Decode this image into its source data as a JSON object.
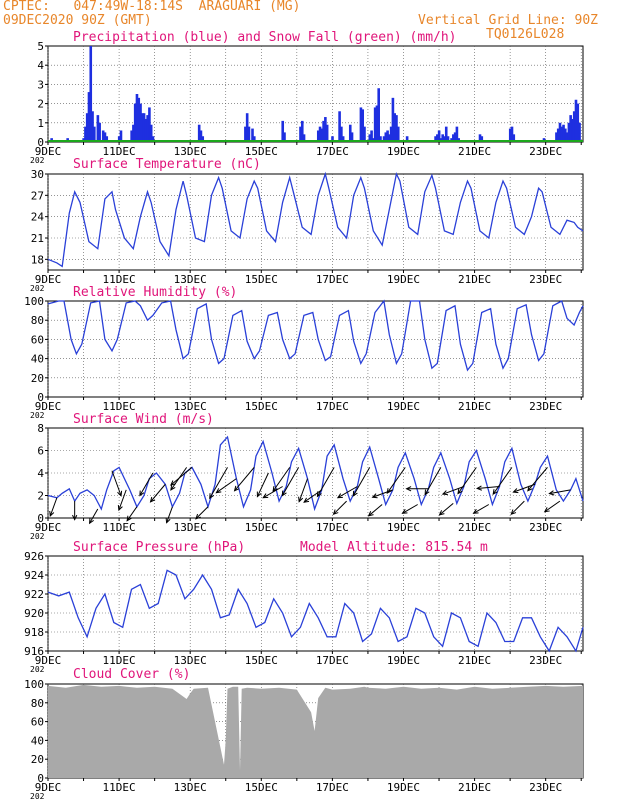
{
  "header": {
    "line1": "CPTEC:   047:49W-18:14S  ARAGUARI (MG)",
    "line2": "09DEC2020 90Z (GMT)",
    "grid_note": "Vertical Grid Line: 90Z",
    "code": "TQ0126L028"
  },
  "colors": {
    "header": "#e8862a",
    "title": "#e0157a",
    "line": "#2a40d8",
    "precip": "#1e2fe0",
    "snow": "#1ca81c",
    "cloud": "#a9a9a9"
  },
  "x_axis": {
    "labels": [
      "9DEC",
      "11DEC",
      "13DEC",
      "15DEC",
      "17DEC",
      "19DEC",
      "21DEC",
      "23DEC"
    ],
    "label_days": [
      9,
      11,
      13,
      15,
      17,
      19,
      21,
      23
    ],
    "year_stub": "202",
    "start_day": 9,
    "end_day": 24.05
  },
  "chart_data": [
    {
      "type": "bar",
      "title": "Precipitation (blue) and Snow Fall (green) (mm/h)",
      "ylim": [
        0,
        5
      ],
      "yticks": [
        0,
        1,
        2,
        3,
        4,
        5
      ],
      "series": [
        {
          "name": "Precipitation",
          "x": [
            9.05,
            9.1,
            9.15,
            9.2,
            9.55,
            9.6,
            10.0,
            10.05,
            10.1,
            10.15,
            10.2,
            10.25,
            10.3,
            10.4,
            10.45,
            10.55,
            10.6,
            10.65,
            10.95,
            11.0,
            11.05,
            11.35,
            11.4,
            11.45,
            11.5,
            11.55,
            11.6,
            11.65,
            11.7,
            11.75,
            11.8,
            11.85,
            11.9,
            11.95,
            13.25,
            13.3,
            13.35,
            14.55,
            14.6,
            14.65,
            14.75,
            14.8,
            15.6,
            15.65,
            16.1,
            16.15,
            16.2,
            16.6,
            16.65,
            16.7,
            16.75,
            16.8,
            16.85,
            17.0,
            17.2,
            17.25,
            17.3,
            17.5,
            17.55,
            17.8,
            17.85,
            17.9,
            18.05,
            18.1,
            18.15,
            18.2,
            18.25,
            18.3,
            18.35,
            18.4,
            18.45,
            18.5,
            18.55,
            18.6,
            18.65,
            18.7,
            18.75,
            18.8,
            18.85,
            19.1,
            19.15,
            19.9,
            19.95,
            20.0,
            20.05,
            20.1,
            20.15,
            20.2,
            20.25,
            20.3,
            20.35,
            20.4,
            20.45,
            20.5,
            20.55,
            21.15,
            21.2,
            22.0,
            22.05,
            22.1,
            22.95,
            23.0,
            23.3,
            23.35,
            23.4,
            23.45,
            23.5,
            23.55,
            23.6,
            23.65,
            23.7,
            23.75,
            23.8,
            23.85,
            23.9,
            23.95
          ],
          "values": [
            0.1,
            0.2,
            0.1,
            0.1,
            0.2,
            0.1,
            0.2,
            0.8,
            1.5,
            2.6,
            5.0,
            1.6,
            0.8,
            1.4,
            1.0,
            0.6,
            0.5,
            0.3,
            0.1,
            0.3,
            0.6,
            0.6,
            0.9,
            2.0,
            2.5,
            2.3,
            2.0,
            1.5,
            1.5,
            1.2,
            1.4,
            1.8,
            0.9,
            0.3,
            0.9,
            0.6,
            0.3,
            0.8,
            1.5,
            0.8,
            0.7,
            0.3,
            1.1,
            0.5,
            0.8,
            1.1,
            0.4,
            0.6,
            0.8,
            0.7,
            1.1,
            1.3,
            0.9,
            0.3,
            1.6,
            0.8,
            0.3,
            0.9,
            0.5,
            1.8,
            1.7,
            0.8,
            0.4,
            0.6,
            0.2,
            1.8,
            1.9,
            2.8,
            0.3,
            0.1,
            0.3,
            0.5,
            0.6,
            0.4,
            0.8,
            2.3,
            1.5,
            1.4,
            0.8,
            0.3,
            0.1,
            0.3,
            0.4,
            0.6,
            0.2,
            0.4,
            0.3,
            0.8,
            0.3,
            0.1,
            0.2,
            0.4,
            0.5,
            0.8,
            0.2,
            0.4,
            0.3,
            0.7,
            0.8,
            0.4,
            0.2,
            0.1,
            0.5,
            0.7,
            1.0,
            0.8,
            0.9,
            0.7,
            0.5,
            1.0,
            1.4,
            1.2,
            1.6,
            2.2,
            2.0,
            1.0
          ]
        },
        {
          "name": "Snow Fall",
          "x": [
            9.0
          ],
          "values": [
            0
          ]
        }
      ]
    },
    {
      "type": "line",
      "title": "Surface Temperature (nC)",
      "ylim": [
        16.5,
        30
      ],
      "yticks": [
        18,
        21,
        24,
        27,
        30
      ],
      "x": [
        9.0,
        9.25,
        9.4,
        9.6,
        9.75,
        9.9,
        10.15,
        10.4,
        10.6,
        10.8,
        10.9,
        11.15,
        11.4,
        11.6,
        11.8,
        11.9,
        12.15,
        12.4,
        12.6,
        12.8,
        12.9,
        13.15,
        13.4,
        13.6,
        13.8,
        13.9,
        14.15,
        14.4,
        14.6,
        14.8,
        14.9,
        15.15,
        15.4,
        15.6,
        15.8,
        15.9,
        16.15,
        16.4,
        16.6,
        16.8,
        16.9,
        17.15,
        17.4,
        17.6,
        17.8,
        17.9,
        18.15,
        18.4,
        18.6,
        18.8,
        18.9,
        19.15,
        19.4,
        19.6,
        19.8,
        19.9,
        20.15,
        20.4,
        20.6,
        20.8,
        20.9,
        21.15,
        21.4,
        21.6,
        21.8,
        21.9,
        22.15,
        22.4,
        22.6,
        22.8,
        22.9,
        23.15,
        23.4,
        23.6,
        23.8,
        23.9,
        24.05
      ],
      "y": [
        18,
        17.5,
        17,
        24.5,
        27.5,
        26,
        20.5,
        19.5,
        26.5,
        27.5,
        25,
        21,
        19.5,
        24,
        27.5,
        26,
        20.5,
        18.5,
        25,
        29,
        27,
        21,
        20.5,
        27,
        29.5,
        28,
        22,
        21,
        26.5,
        29,
        28,
        22,
        20.5,
        26,
        29.5,
        27.5,
        22.5,
        21.5,
        27,
        30,
        28,
        22.5,
        21,
        27,
        29.5,
        28,
        22,
        20,
        25,
        30,
        29,
        22.5,
        21.5,
        27.5,
        29.8,
        28,
        22,
        21.5,
        26,
        29,
        28,
        22,
        21,
        26,
        29,
        28,
        22.5,
        21.5,
        24,
        28,
        27.5,
        22.5,
        21.5,
        23.5,
        23.2,
        22.5,
        22
      ]
    },
    {
      "type": "line",
      "title": "Relative Humidity (%)",
      "ylim": [
        0,
        100
      ],
      "yticks": [
        0,
        20,
        40,
        60,
        80,
        100
      ],
      "x": [
        9.0,
        9.3,
        9.45,
        9.65,
        9.8,
        9.95,
        10.2,
        10.45,
        10.6,
        10.8,
        10.95,
        11.2,
        11.45,
        11.6,
        11.8,
        11.95,
        12.2,
        12.45,
        12.6,
        12.8,
        12.95,
        13.2,
        13.45,
        13.6,
        13.8,
        13.95,
        14.2,
        14.45,
        14.6,
        14.8,
        14.95,
        15.2,
        15.45,
        15.6,
        15.8,
        15.95,
        16.2,
        16.45,
        16.6,
        16.8,
        16.95,
        17.2,
        17.45,
        17.6,
        17.8,
        17.95,
        18.2,
        18.45,
        18.6,
        18.8,
        18.95,
        19.2,
        19.45,
        19.6,
        19.8,
        19.95,
        20.2,
        20.45,
        20.6,
        20.8,
        20.95,
        21.2,
        21.45,
        21.6,
        21.8,
        21.95,
        22.2,
        22.45,
        22.6,
        22.8,
        22.95,
        23.2,
        23.45,
        23.6,
        23.8,
        23.95,
        24.05
      ],
      "y": [
        97,
        100,
        100,
        60,
        45,
        55,
        98,
        100,
        60,
        48,
        60,
        98,
        100,
        95,
        80,
        85,
        98,
        100,
        70,
        40,
        45,
        92,
        97,
        60,
        35,
        40,
        85,
        90,
        58,
        40,
        48,
        85,
        88,
        60,
        40,
        45,
        85,
        88,
        60,
        38,
        42,
        85,
        90,
        58,
        35,
        45,
        88,
        100,
        65,
        35,
        45,
        100,
        100,
        60,
        30,
        35,
        90,
        95,
        55,
        28,
        35,
        88,
        92,
        55,
        30,
        40,
        92,
        96,
        65,
        38,
        45,
        95,
        100,
        82,
        75,
        88,
        95
      ]
    },
    {
      "type": "line",
      "title": "Surface Wind (m/s)",
      "ylim": [
        0,
        8
      ],
      "yticks": [
        0,
        2,
        4,
        6,
        8
      ],
      "x": [
        9.0,
        9.25,
        9.4,
        9.6,
        9.75,
        9.9,
        10.1,
        10.3,
        10.5,
        10.65,
        10.85,
        11.0,
        11.3,
        11.5,
        11.7,
        11.85,
        12.05,
        12.3,
        12.5,
        12.7,
        12.85,
        13.05,
        13.3,
        13.5,
        13.7,
        13.85,
        14.05,
        14.3,
        14.5,
        14.7,
        14.85,
        15.05,
        15.3,
        15.5,
        15.7,
        15.85,
        16.05,
        16.3,
        16.5,
        16.7,
        16.85,
        17.05,
        17.3,
        17.5,
        17.7,
        17.85,
        18.05,
        18.3,
        18.5,
        18.7,
        18.85,
        19.05,
        19.3,
        19.5,
        19.7,
        19.85,
        20.05,
        20.3,
        20.5,
        20.7,
        20.85,
        21.05,
        21.3,
        21.5,
        21.7,
        21.85,
        22.05,
        22.3,
        22.5,
        22.7,
        22.85,
        23.05,
        23.3,
        23.5,
        23.7,
        23.85,
        24.05
      ],
      "y": [
        2.0,
        1.8,
        2.2,
        2.6,
        1.5,
        2.2,
        2.5,
        2.0,
        0.8,
        2.5,
        4.2,
        4.5,
        2.5,
        1.0,
        2.0,
        3.5,
        4.0,
        3.0,
        1.0,
        2.2,
        4.0,
        4.5,
        3.0,
        1.0,
        3.0,
        6.5,
        7.2,
        3.5,
        1.0,
        2.5,
        5.5,
        6.8,
        4.0,
        1.5,
        2.8,
        5.0,
        6.2,
        3.5,
        0.8,
        2.5,
        5.5,
        6.5,
        3.5,
        1.5,
        2.8,
        5.0,
        6.3,
        3.5,
        1.2,
        2.5,
        4.5,
        5.8,
        3.5,
        1.2,
        2.6,
        4.5,
        5.8,
        3.5,
        1.3,
        2.8,
        5.0,
        6.0,
        3.5,
        1.2,
        2.8,
        5.0,
        6.2,
        3.0,
        1.5,
        3.0,
        4.5,
        5.5,
        2.5,
        1.5,
        2.5,
        3.5,
        1.5
      ],
      "arrows_x": [
        9.25,
        9.75,
        10.4,
        10.8,
        11.2,
        11.5,
        11.95,
        12.3,
        12.5,
        12.9,
        13.05,
        13.5,
        14.05,
        14.3,
        14.8,
        15.2,
        15.6,
        15.8,
        16.05,
        16.3,
        16.7,
        17.05,
        17.4,
        17.7,
        18.05,
        18.4,
        18.7,
        19.05,
        19.4,
        19.7,
        20.05,
        20.4,
        20.7,
        21.05,
        21.4,
        21.7,
        22.05,
        22.4,
        22.7,
        23.05,
        23.4,
        23.7
      ],
      "arrows_dir": [
        200,
        180,
        210,
        160,
        200,
        215,
        210,
        220,
        200,
        215,
        230,
        225,
        210,
        235,
        220,
        205,
        240,
        215,
        210,
        200,
        235,
        210,
        225,
        240,
        210,
        230,
        250,
        215,
        240,
        270,
        210,
        230,
        250,
        215,
        240,
        265,
        215,
        225,
        250,
        220,
        235,
        260
      ]
    },
    {
      "type": "line",
      "title": "Surface Pressure (hPa)",
      "annotation": "Model Altitude: 815.54 m",
      "ylim": [
        916,
        926
      ],
      "yticks": [
        916,
        918,
        920,
        922,
        924,
        926
      ],
      "x": [
        9.0,
        9.3,
        9.6,
        9.85,
        10.1,
        10.35,
        10.6,
        10.85,
        11.1,
        11.35,
        11.6,
        11.85,
        12.1,
        12.35,
        12.6,
        12.85,
        13.1,
        13.35,
        13.6,
        13.85,
        14.1,
        14.35,
        14.6,
        14.85,
        15.1,
        15.35,
        15.6,
        15.85,
        16.1,
        16.35,
        16.6,
        16.85,
        17.1,
        17.35,
        17.6,
        17.85,
        18.1,
        18.35,
        18.6,
        18.85,
        19.1,
        19.35,
        19.6,
        19.85,
        20.1,
        20.35,
        20.6,
        20.85,
        21.1,
        21.35,
        21.6,
        21.85,
        22.1,
        22.35,
        22.6,
        22.85,
        23.1,
        23.35,
        23.6,
        23.85,
        24.05
      ],
      "y": [
        922.2,
        921.8,
        922.2,
        919.5,
        917.5,
        920.5,
        922.0,
        919.0,
        918.5,
        922.5,
        923.0,
        920.5,
        921.0,
        924.5,
        924.0,
        921.5,
        922.5,
        924.0,
        922.5,
        919.5,
        919.8,
        922.5,
        921.0,
        918.5,
        919.0,
        921.5,
        920.0,
        917.5,
        918.5,
        921.0,
        919.5,
        917.5,
        917.5,
        921.0,
        920.0,
        917.0,
        917.8,
        920.5,
        919.5,
        917.0,
        917.5,
        920.5,
        920.0,
        917.5,
        916.5,
        920.0,
        919.5,
        917.0,
        916.5,
        920.0,
        919.0,
        917.0,
        917.0,
        919.5,
        919.5,
        917.5,
        916.0,
        918.5,
        917.5,
        916.0,
        918.5
      ]
    },
    {
      "type": "area",
      "title": "Cloud Cover (%)",
      "ylim": [
        0,
        100
      ],
      "yticks": [
        0,
        20,
        40,
        60,
        80,
        100
      ],
      "x": [
        9.0,
        9.5,
        10.0,
        10.5,
        11.0,
        11.5,
        12.0,
        12.5,
        12.9,
        13.0,
        13.1,
        13.5,
        13.95,
        14.0,
        14.05,
        14.2,
        14.35,
        14.4,
        14.45,
        14.6,
        15.0,
        15.5,
        16.0,
        16.4,
        16.5,
        16.6,
        16.8,
        17.0,
        17.5,
        17.9,
        18.0,
        18.5,
        19.0,
        19.5,
        20.0,
        20.5,
        21.0,
        21.5,
        22.0,
        22.5,
        23.0,
        23.5,
        24.05
      ],
      "y": [
        98,
        96,
        99,
        97,
        98,
        96,
        97,
        95,
        84,
        90,
        95,
        96,
        14,
        40,
        95,
        97,
        97,
        8,
        95,
        96,
        95,
        96,
        94,
        70,
        50,
        85,
        96,
        94,
        95,
        97,
        96,
        95,
        97,
        95,
        96,
        94,
        97,
        95,
        96,
        97,
        98,
        97,
        98
      ]
    }
  ]
}
